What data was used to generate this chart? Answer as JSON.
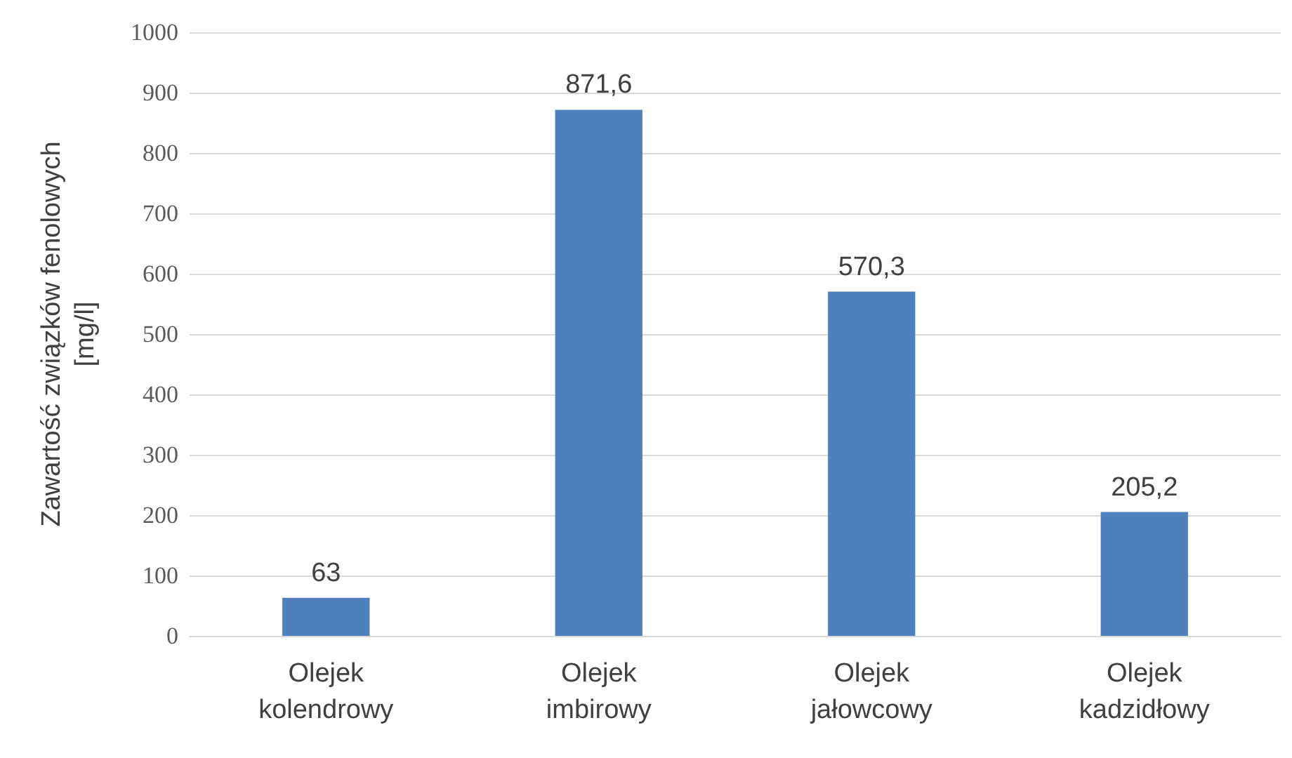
{
  "chart_data": {
    "type": "bar",
    "ylabel": "Zawartość związków fenolowych [mg/l]",
    "categories": [
      "Olejek kolendrowy",
      "Olejek imbirowy",
      "Olejek jałowcowy",
      "Olejek kadzidłowy"
    ],
    "values": [
      63,
      871.6,
      570.3,
      205.2
    ],
    "value_labels": [
      "63",
      "871,6",
      "570,3",
      "205,2"
    ],
    "color": "#4f81bd",
    "ylim": [
      0,
      1000
    ],
    "yticks": [
      0,
      100,
      200,
      300,
      400,
      500,
      600,
      700,
      800,
      900,
      1000
    ],
    "grid": "y"
  }
}
